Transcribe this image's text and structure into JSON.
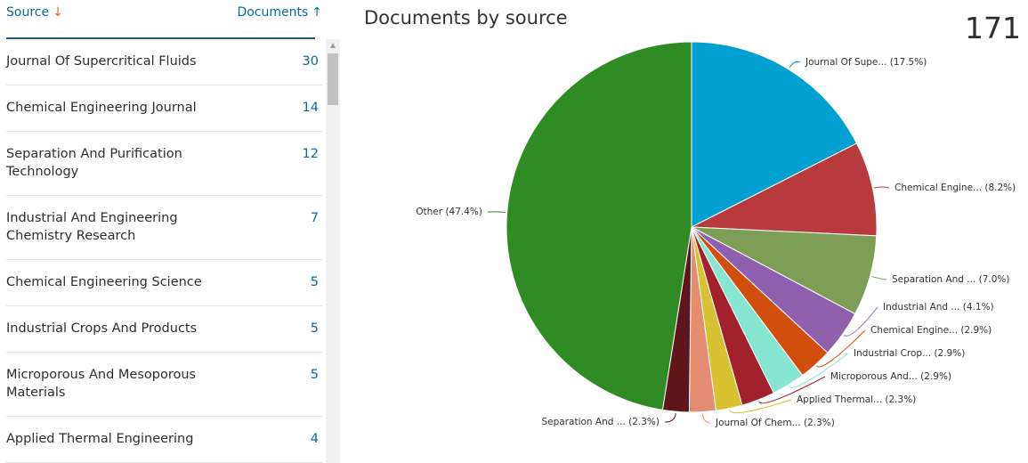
{
  "table": {
    "header_source": "Source",
    "header_documents": "Documents",
    "rows": [
      {
        "source": "Journal Of Supercritical Fluids",
        "count": "30"
      },
      {
        "source": "Chemical Engineering Journal",
        "count": "14"
      },
      {
        "source": "Separation And Purification Technology",
        "count": "12"
      },
      {
        "source": "Industrial And Engineering Chemistry Research",
        "count": "7"
      },
      {
        "source": "Chemical Engineering Science",
        "count": "5"
      },
      {
        "source": "Industrial Crops And Products",
        "count": "5"
      },
      {
        "source": "Microporous And Mesoporous Materials",
        "count": "5"
      },
      {
        "source": "Applied Thermal Engineering",
        "count": "4"
      }
    ]
  },
  "chart": {
    "title": "Documents by source",
    "total": "171"
  },
  "chart_data": {
    "type": "pie",
    "title": "Documents by source",
    "slices": [
      {
        "label": "Journal Of Supe... (17.5%)",
        "value": 17.5,
        "color": "#00a0d0"
      },
      {
        "label": "Chemical Engine... (8.2%)",
        "value": 8.2,
        "color": "#b63a3e"
      },
      {
        "label": "Separation And ... (7.0%)",
        "value": 7.0,
        "color": "#7f9e55"
      },
      {
        "label": "Industrial And ... (4.1%)",
        "value": 4.1,
        "color": "#8e60ad"
      },
      {
        "label": "Chemical Engine... (2.9%)",
        "value": 2.9,
        "color": "#d24e0c"
      },
      {
        "label": "Industrial Crop... (2.9%)",
        "value": 2.9,
        "color": "#87e6d2"
      },
      {
        "label": "Microporous And... (2.9%)",
        "value": 2.9,
        "color": "#a3202e"
      },
      {
        "label": "Applied Thermal... (2.3%)",
        "value": 2.3,
        "color": "#d8c232"
      },
      {
        "label": "Journal Of Chem... (2.3%)",
        "value": 2.3,
        "color": "#e58d72"
      },
      {
        "label": "Separation And ... (2.3%)",
        "value": 2.3,
        "color": "#5e151c"
      },
      {
        "label": "Other (47.4%)",
        "value": 47.4,
        "color": "#2f8b23"
      }
    ]
  }
}
